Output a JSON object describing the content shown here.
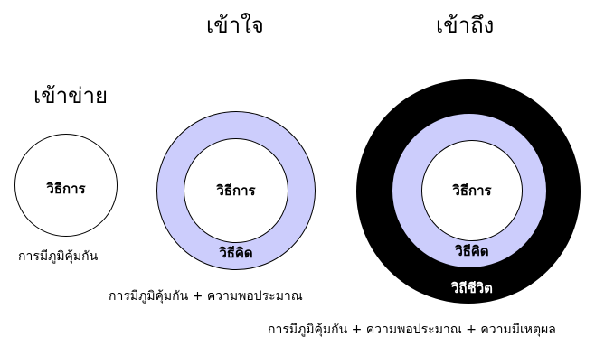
{
  "headings": {
    "stage1": "เข้าข่าย",
    "stage2": "เข้าใจ",
    "stage3": "เข้าถึง"
  },
  "diagram1": {
    "inner_label": "วิธีการ",
    "caption": "การมีภูมิคุ้มกัน"
  },
  "diagram2": {
    "inner_label": "วิธีการ",
    "ring_label": "วิธีคิด",
    "caption": "การมีภูมิคุ้มกัน + ความพอประมาณ"
  },
  "diagram3": {
    "inner_label": "วิธีการ",
    "middle_label": "วิธีคิด",
    "outer_label": "วิถีชีวิต",
    "caption": "การมีภูมิคุ้มกัน + ความพอประมาณ + ความมีเหตุผล"
  },
  "colors": {
    "ring_lavender": "#cccdfc",
    "ring_black": "#000000",
    "circle_white": "#ffffff"
  }
}
